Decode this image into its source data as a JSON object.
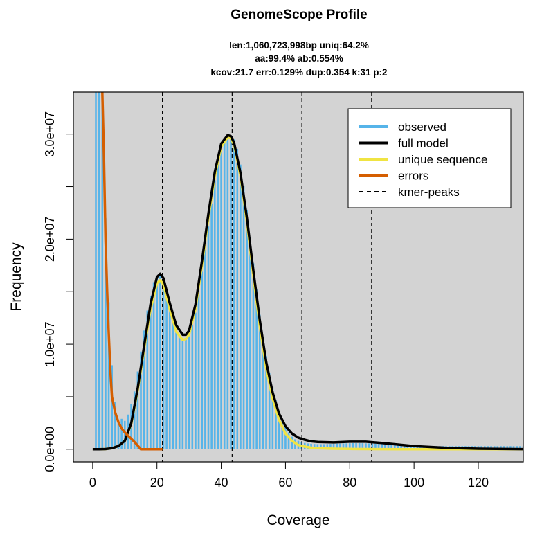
{
  "chart_data": {
    "type": "line",
    "title": "GenomeScope Profile",
    "subtitle_lines": [
      "len:1,060,723,998bp uniq:64.2%",
      "aa:99.4% ab:0.554%",
      "kcov:21.7 err:0.129%  dup:0.354  k:31 p:2"
    ],
    "xlabel": "Coverage",
    "ylabel": "Frequency",
    "xlim": [
      -6,
      134
    ],
    "ylim": [
      -1200000,
      34000000
    ],
    "x_ticks": [
      0,
      20,
      40,
      60,
      80,
      100,
      120
    ],
    "x_tick_labels": [
      "0",
      "20",
      "40",
      "60",
      "80",
      "100",
      "120"
    ],
    "y_ticks": [
      0,
      5000000,
      10000000,
      15000000,
      20000000,
      25000000,
      30000000
    ],
    "y_tick_labels": [
      "0.0e+00",
      "",
      "1.0e+07",
      "",
      "2.0e+07",
      "",
      "3.0e+07"
    ],
    "kmer_peaks": [
      21.7,
      43.4,
      65.1,
      86.8
    ],
    "colors": {
      "observed": "#56B4E9",
      "full_model": "#000000",
      "unique_sequence": "#F0E442",
      "errors": "#D55E00",
      "kmer_peaks": "#000000",
      "panel_bg": "#d3d3d3"
    },
    "legend": [
      {
        "label": "observed",
        "style": "solid",
        "color": "#56B4E9"
      },
      {
        "label": "full model",
        "style": "solid",
        "color": "#000000"
      },
      {
        "label": "unique sequence",
        "style": "solid",
        "color": "#F0E442"
      },
      {
        "label": "errors",
        "style": "solid",
        "color": "#D55E00"
      },
      {
        "label": "kmer-peaks",
        "style": "dashed",
        "color": "#000000"
      }
    ],
    "legend_position": "top-right",
    "series": [
      {
        "name": "full model",
        "x": [
          0,
          2,
          4,
          6,
          8,
          10,
          12,
          14,
          16,
          18,
          20,
          21,
          22,
          24,
          26,
          28,
          29,
          30,
          32,
          34,
          36,
          38,
          40,
          42,
          43,
          44,
          46,
          48,
          50,
          52,
          54,
          56,
          58,
          60,
          62,
          64,
          66,
          68,
          70,
          75,
          80,
          85,
          90,
          95,
          100,
          110,
          120,
          134
        ],
        "y": [
          0,
          0,
          20000,
          100000,
          300000,
          800000,
          2500000,
          5800000,
          9800000,
          13800000,
          16400000,
          16700000,
          16300000,
          13900000,
          11800000,
          10900000,
          10900000,
          11300000,
          13800000,
          17900000,
          22400000,
          26400000,
          29100000,
          29900000,
          29800000,
          29200000,
          26300000,
          22000000,
          17000000,
          12300000,
          8300000,
          5400000,
          3400000,
          2200000,
          1500000,
          1100000,
          900000,
          750000,
          700000,
          650000,
          720000,
          720000,
          600000,
          450000,
          300000,
          140000,
          50000,
          10000
        ]
      },
      {
        "name": "unique sequence",
        "x": [
          0,
          2,
          4,
          6,
          8,
          10,
          12,
          14,
          16,
          18,
          20,
          21,
          22,
          24,
          26,
          28,
          29,
          30,
          32,
          34,
          36,
          38,
          40,
          42,
          43,
          44,
          46,
          48,
          50,
          52,
          54,
          56,
          58,
          60,
          62,
          64,
          66,
          68,
          70,
          75,
          80,
          85,
          90,
          95,
          100,
          110,
          120,
          134
        ],
        "y": [
          0,
          0,
          20000,
          100000,
          300000,
          800000,
          2400000,
          5600000,
          9500000,
          13300000,
          15800000,
          16100000,
          15700000,
          13300000,
          11200000,
          10400000,
          10500000,
          10900000,
          13400000,
          17500000,
          22000000,
          26000000,
          28800000,
          29700000,
          29600000,
          29000000,
          26000000,
          21600000,
          16500000,
          11700000,
          7700000,
          4800000,
          2800000,
          1500000,
          800000,
          400000,
          250000,
          150000,
          100000,
          50000,
          30000,
          20000,
          10000,
          0,
          0,
          0,
          0,
          0
        ]
      },
      {
        "name": "errors",
        "x": [
          3,
          3.5,
          4,
          4.5,
          5,
          5.5,
          6,
          7,
          8,
          9,
          10,
          11,
          12,
          13,
          14,
          15,
          17,
          19,
          21.7
        ],
        "y": [
          34000000,
          28000000,
          20000000,
          15000000,
          11000000,
          7500000,
          5000000,
          3500000,
          2600000,
          2000000,
          1600000,
          1300000,
          1000000,
          700000,
          350000,
          0,
          0,
          0,
          0
        ]
      },
      {
        "name": "observed",
        "x": [
          1,
          2,
          3,
          4,
          5,
          6,
          7,
          8,
          9,
          10,
          11,
          12,
          13,
          14,
          15,
          16,
          17,
          18,
          19,
          20,
          21,
          22,
          23,
          24,
          25,
          26,
          27,
          28,
          29,
          30,
          31,
          32,
          33,
          34,
          35,
          36,
          37,
          38,
          39,
          40,
          41,
          42,
          43,
          44,
          45,
          46,
          47,
          48,
          49,
          50,
          51,
          52,
          53,
          54,
          55,
          56,
          57,
          58,
          59,
          60,
          61,
          62,
          63,
          64,
          65,
          66,
          67,
          68,
          69,
          70,
          71,
          72,
          73,
          74,
          75,
          76,
          77,
          78,
          79,
          80,
          81,
          82,
          83,
          84,
          85,
          86,
          87,
          88,
          89,
          90,
          91,
          92,
          93,
          94,
          95,
          96,
          97,
          98,
          99,
          100,
          101,
          102,
          103,
          104,
          105,
          106,
          107,
          108,
          109,
          110,
          111,
          112,
          113,
          114,
          115,
          116,
          117,
          118,
          119,
          120,
          121,
          122,
          123,
          124,
          125,
          126,
          127,
          128,
          129,
          130,
          131,
          132,
          133,
          134
        ],
        "y": [
          34000000,
          34000000,
          34000000,
          22000000,
          14000000,
          8000000,
          4500000,
          2500000,
          2900000,
          2700000,
          3300000,
          4300000,
          5500000,
          7400000,
          9300000,
          11300000,
          13200000,
          14600000,
          15900000,
          16400000,
          16600000,
          16300000,
          15100000,
          13900000,
          12500000,
          11300000,
          10700000,
          10500000,
          10600000,
          11000000,
          11800000,
          13000000,
          14700000,
          16900000,
          19000000,
          21200000,
          23400000,
          25600000,
          27300000,
          28700000,
          29300000,
          29700000,
          29800000,
          29500000,
          28600000,
          27100000,
          25100000,
          22800000,
          20200000,
          17700000,
          15200000,
          12800000,
          10700000,
          8900000,
          7300000,
          5900000,
          4700000,
          3700000,
          2800000,
          2100000,
          1600000,
          1200000,
          950000,
          800000,
          700000,
          600000,
          550000,
          520000,
          500000,
          480000,
          480000,
          480000,
          490000,
          500000,
          520000,
          530000,
          540000,
          550000,
          560000,
          570000,
          580000,
          580000,
          580000,
          570000,
          560000,
          550000,
          540000,
          520000,
          500000,
          480000,
          460000,
          440000,
          420000,
          400000,
          380000,
          360000,
          350000,
          340000,
          330000,
          320000,
          320000,
          310000,
          310000,
          300000,
          300000,
          300000,
          300000,
          300000,
          300000,
          300000,
          300000,
          300000,
          300000,
          300000,
          300000,
          300000,
          300000,
          300000,
          300000,
          300000,
          300000,
          300000,
          300000,
          300000,
          300000,
          300000,
          300000,
          300000,
          300000,
          300000,
          300000,
          300000,
          300000,
          300000
        ]
      }
    ]
  }
}
